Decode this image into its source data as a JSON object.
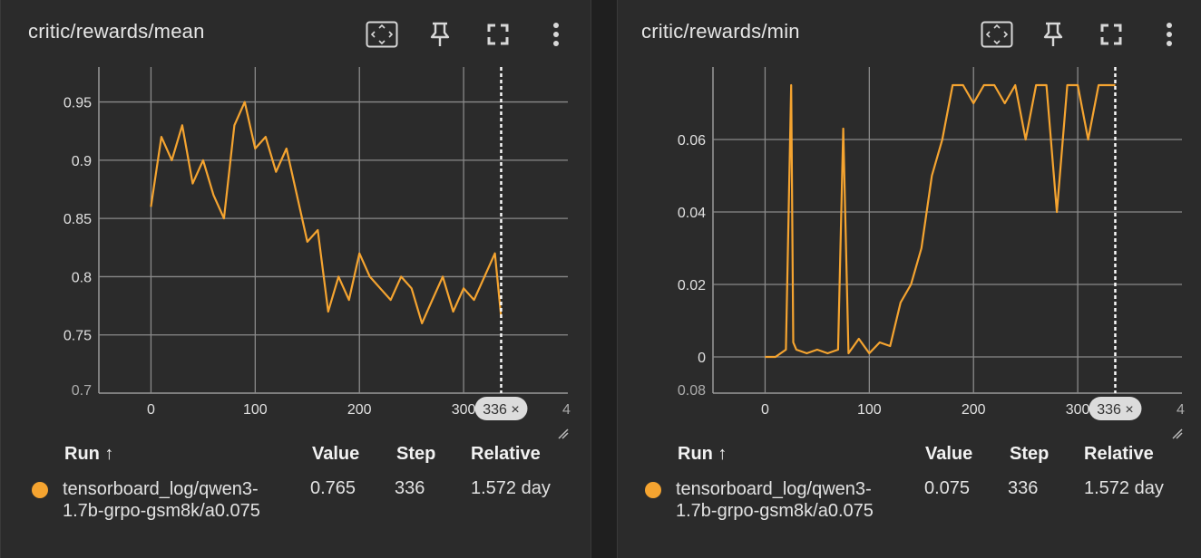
{
  "colors": {
    "background": "#2b2b2b",
    "series": "#f5a430",
    "grid": "#8a8a8a",
    "axis": "#9a9a9a",
    "badge": "#dcdcdc"
  },
  "legend_header": {
    "run": "Run ↑",
    "value": "Value",
    "step": "Step",
    "relative": "Relative"
  },
  "toolbar_icons": [
    "fit-domain-icon",
    "pin-icon",
    "fullscreen-icon",
    "more-vert-icon"
  ],
  "chart_data": [
    {
      "type": "line",
      "title": "critic/rewards/mean",
      "x_ticks": [
        "0",
        "100",
        "200",
        "300"
      ],
      "x_clipped_tick": "4",
      "y_ticks": [
        "0.95",
        "0.9",
        "0.85",
        "0.8",
        "0.75"
      ],
      "y_clipped_tick": "0.7",
      "xlim": [
        -50,
        400
      ],
      "ylim": [
        0.7,
        0.98
      ],
      "cursor_step": 336,
      "cursor_label": "336 ×",
      "series": [
        {
          "run": "tensorboard_log/qwen3-1.7b-grpo-gsm8k/a0.075",
          "value": "0.765",
          "step": "336",
          "relative": "1.572 day",
          "x": [
            0,
            10,
            20,
            30,
            40,
            50,
            60,
            70,
            80,
            90,
            100,
            110,
            120,
            130,
            140,
            150,
            160,
            170,
            180,
            190,
            200,
            210,
            220,
            230,
            240,
            250,
            260,
            270,
            280,
            290,
            300,
            310,
            320,
            330,
            336
          ],
          "y": [
            0.86,
            0.92,
            0.9,
            0.93,
            0.88,
            0.9,
            0.87,
            0.85,
            0.93,
            0.95,
            0.91,
            0.92,
            0.89,
            0.91,
            0.87,
            0.83,
            0.84,
            0.77,
            0.8,
            0.78,
            0.82,
            0.8,
            0.79,
            0.78,
            0.8,
            0.79,
            0.76,
            0.78,
            0.8,
            0.77,
            0.79,
            0.78,
            0.8,
            0.82,
            0.765
          ]
        }
      ]
    },
    {
      "type": "line",
      "title": "critic/rewards/min",
      "x_ticks": [
        "0",
        "100",
        "200",
        "300"
      ],
      "x_clipped_tick": "4",
      "y_ticks": [
        "0.06",
        "0.04",
        "0.02",
        "0"
      ],
      "y_clipped_tick": "0.08",
      "xlim": [
        -50,
        400
      ],
      "ylim": [
        -0.01,
        0.08
      ],
      "cursor_step": 336,
      "cursor_label": "336 ×",
      "series": [
        {
          "run": "tensorboard_log/qwen3-1.7b-grpo-gsm8k/a0.075",
          "value": "0.075",
          "step": "336",
          "relative": "1.572 day",
          "x": [
            0,
            10,
            20,
            25,
            27,
            30,
            40,
            50,
            60,
            70,
            75,
            80,
            90,
            100,
            110,
            120,
            130,
            140,
            150,
            160,
            170,
            180,
            190,
            200,
            210,
            220,
            230,
            240,
            250,
            260,
            270,
            280,
            290,
            300,
            310,
            320,
            330,
            336
          ],
          "y": [
            0,
            0,
            0.002,
            0.075,
            0.004,
            0.002,
            0.001,
            0.002,
            0.001,
            0.002,
            0.063,
            0.001,
            0.005,
            0.001,
            0.004,
            0.003,
            0.015,
            0.02,
            0.03,
            0.05,
            0.06,
            0.075,
            0.075,
            0.07,
            0.075,
            0.075,
            0.07,
            0.075,
            0.06,
            0.075,
            0.075,
            0.04,
            0.075,
            0.075,
            0.06,
            0.075,
            0.075,
            0.075
          ]
        }
      ]
    }
  ]
}
